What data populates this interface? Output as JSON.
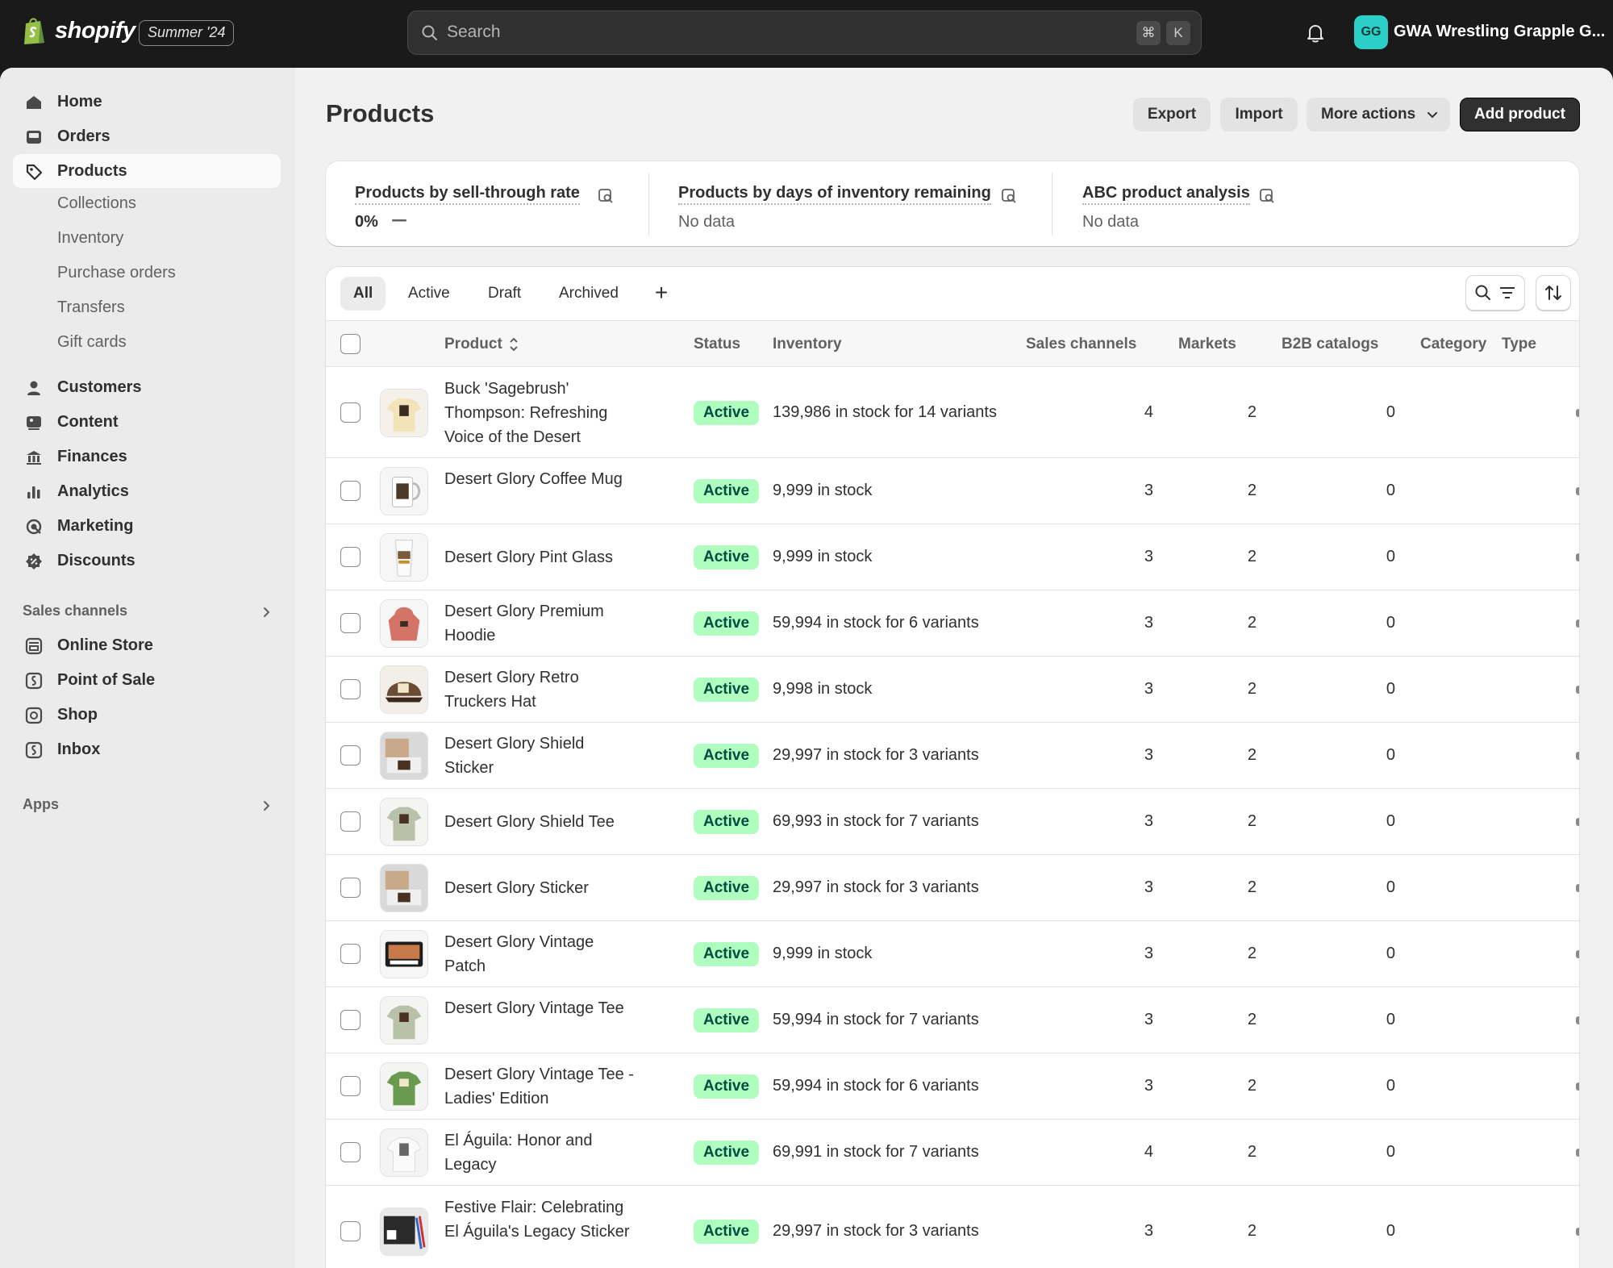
{
  "topbar": {
    "brand": "shopify",
    "edition": "Summer '24",
    "search_placeholder": "Search",
    "shortcut_keys": [
      "⌘",
      "K"
    ],
    "avatar_initials": "GG",
    "store_name": "GWA Wrestling Grapple G..."
  },
  "sidebar": {
    "items": [
      {
        "label": "Home",
        "icon": "home-icon"
      },
      {
        "label": "Orders",
        "icon": "inbox-icon"
      },
      {
        "label": "Products",
        "icon": "tag-icon",
        "active": true
      }
    ],
    "product_sub": [
      "Collections",
      "Inventory",
      "Purchase orders",
      "Transfers",
      "Gift cards"
    ],
    "items2": [
      {
        "label": "Customers",
        "icon": "person-icon"
      },
      {
        "label": "Content",
        "icon": "image-icon"
      },
      {
        "label": "Finances",
        "icon": "bank-icon"
      },
      {
        "label": "Analytics",
        "icon": "bar-chart-icon"
      },
      {
        "label": "Marketing",
        "icon": "target-icon"
      },
      {
        "label": "Discounts",
        "icon": "discount-icon"
      }
    ],
    "sales_channels_label": "Sales channels",
    "channels": [
      {
        "label": "Online Store",
        "icon": "store-icon"
      },
      {
        "label": "Point of Sale",
        "icon": "pos-icon"
      },
      {
        "label": "Shop",
        "icon": "shop-icon"
      },
      {
        "label": "Inbox",
        "icon": "chat-icon"
      }
    ],
    "apps_label": "Apps"
  },
  "page": {
    "title": "Products",
    "actions": {
      "export": "Export",
      "import": "Import",
      "more": "More actions",
      "add": "Add product"
    }
  },
  "metrics": [
    {
      "title": "Products by sell-through rate",
      "value": "0%"
    },
    {
      "title": "Products by days of inventory remaining",
      "value": "No data"
    },
    {
      "title": "ABC product analysis",
      "value": "No data"
    }
  ],
  "tabs": [
    "All",
    "Active",
    "Draft",
    "Archived"
  ],
  "columns": {
    "product": "Product",
    "status": "Status",
    "inventory": "Inventory",
    "sales_channels": "Sales channels",
    "markets": "Markets",
    "b2b": "B2B catalogs",
    "category": "Category",
    "type": "Type"
  },
  "products": [
    {
      "name": "Buck 'Sagebrush' Thompson: Refreshing Voice of the Desert",
      "status": "Active",
      "inventory": "139,986 in stock for 14 variants",
      "channels": "4",
      "markets": "2",
      "b2b": "0",
      "thumb": "tan-shirt"
    },
    {
      "name": "Desert Glory Coffee Mug",
      "status": "Active",
      "inventory": "9,999 in stock",
      "channels": "3",
      "markets": "2",
      "b2b": "0",
      "thumb": "mug"
    },
    {
      "name": "Desert Glory Pint Glass",
      "status": "Active",
      "inventory": "9,999 in stock",
      "channels": "3",
      "markets": "2",
      "b2b": "0",
      "thumb": "glass"
    },
    {
      "name": "Desert Glory Premium Hoodie",
      "status": "Active",
      "inventory": "59,994 in stock for 6 variants",
      "channels": "3",
      "markets": "2",
      "b2b": "0",
      "thumb": "hoodie"
    },
    {
      "name": "Desert Glory Retro Truckers Hat",
      "status": "Active",
      "inventory": "9,998 in stock",
      "channels": "3",
      "markets": "2",
      "b2b": "0",
      "thumb": "hat"
    },
    {
      "name": "Desert Glory Shield Sticker",
      "status": "Active",
      "inventory": "29,997 in stock for 3 variants",
      "channels": "3",
      "markets": "2",
      "b2b": "0",
      "thumb": "sticker"
    },
    {
      "name": "Desert Glory Shield Tee",
      "status": "Active",
      "inventory": "69,993 in stock for 7 variants",
      "channels": "3",
      "markets": "2",
      "b2b": "0",
      "thumb": "sage-shirt"
    },
    {
      "name": "Desert Glory Sticker",
      "status": "Active",
      "inventory": "29,997 in stock for 3 variants",
      "channels": "3",
      "markets": "2",
      "b2b": "0",
      "thumb": "sticker"
    },
    {
      "name": "Desert Glory Vintage Patch",
      "status": "Active",
      "inventory": "9,999 in stock",
      "channels": "3",
      "markets": "2",
      "b2b": "0",
      "thumb": "patch"
    },
    {
      "name": "Desert Glory Vintage Tee",
      "status": "Active",
      "inventory": "59,994 in stock for 7 variants",
      "channels": "3",
      "markets": "2",
      "b2b": "0",
      "thumb": "sage-shirt"
    },
    {
      "name": "Desert Glory Vintage Tee - Ladies' Edition",
      "status": "Active",
      "inventory": "59,994 in stock for 6 variants",
      "channels": "3",
      "markets": "2",
      "b2b": "0",
      "thumb": "green-shirt"
    },
    {
      "name": "El Águila: Honor and Legacy",
      "status": "Active",
      "inventory": "69,991 in stock for 7 variants",
      "channels": "4",
      "markets": "2",
      "b2b": "0",
      "thumb": "white-shirt"
    },
    {
      "name": "Festive Flair: Celebrating El Águila's Legacy Sticker",
      "status": "Active",
      "inventory": "29,997 in stock for 3 variants",
      "channels": "3",
      "markets": "2",
      "b2b": "0",
      "thumb": "laptop"
    }
  ],
  "colors": {
    "topbar": "#1a1a1a",
    "badge_bg": "#affebf",
    "badge_text": "#014b40",
    "avatar": "#2ad0c8"
  }
}
